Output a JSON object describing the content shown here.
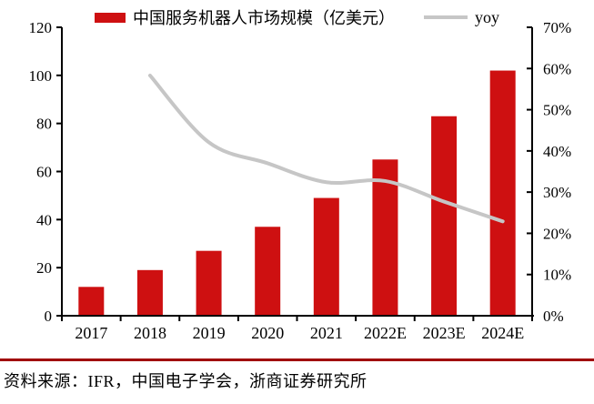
{
  "chart_data": {
    "type": "bar",
    "categories": [
      "2017",
      "2018",
      "2019",
      "2020",
      "2021",
      "2022E",
      "2023E",
      "2024E"
    ],
    "series": [
      {
        "name": "中国服务机器人市场规模（亿美元）",
        "type": "bar",
        "axis": "left",
        "values": [
          12,
          19,
          27,
          37,
          49,
          65,
          83,
          102
        ]
      },
      {
        "name": "yoy",
        "type": "line",
        "axis": "right",
        "values": [
          null,
          58.3,
          42.1,
          37.0,
          32.4,
          32.7,
          27.7,
          22.9
        ]
      }
    ],
    "title": "",
    "xlabel": "",
    "ylabel": "",
    "left_axis": {
      "min": 0,
      "max": 120,
      "step": 20,
      "tick_labels": [
        "0",
        "20",
        "40",
        "60",
        "80",
        "100",
        "120"
      ]
    },
    "right_axis": {
      "min": 0,
      "max": 70,
      "step": 10,
      "tick_labels": [
        "0%",
        "10%",
        "20%",
        "30%",
        "40%",
        "50%",
        "60%",
        "70%"
      ]
    },
    "grid": false,
    "legend_position": "top"
  },
  "legend": {
    "bar_label": "中国服务机器人市场规模（亿美元）",
    "line_label": "yoy"
  },
  "footer": {
    "source_text": "资料来源：IFR，中国电子学会，浙商证券研究所"
  },
  "colors": {
    "bar_red": "#CE1011",
    "line_gray": "#C6C6C6",
    "footer_rule_red": "#A00000",
    "axis_black": "#000000",
    "text_black": "#000000"
  }
}
